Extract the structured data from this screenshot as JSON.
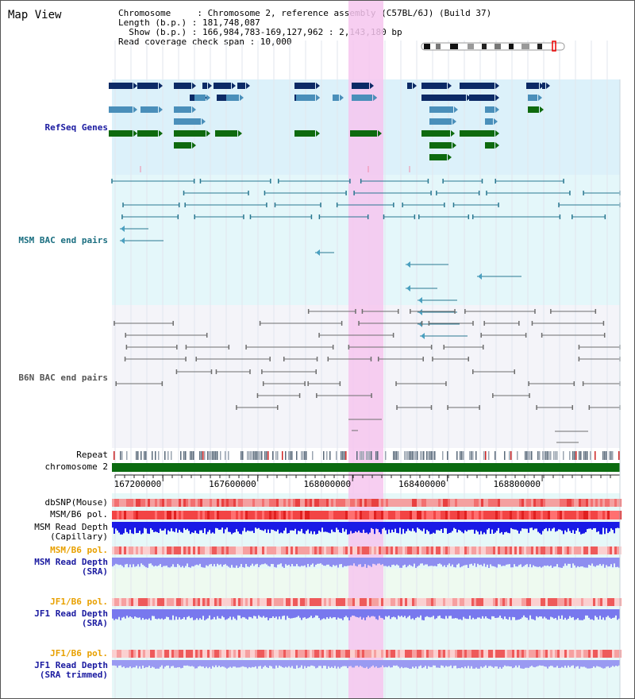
{
  "header": {
    "title": "Map View",
    "chromosome_line": "Chromosome     : Chromosome 2, reference assembly (C57BL/6J) (Build 37)",
    "length_line": "Length (b.p.) : 181,748,087",
    "show_line": "  Show (b.p.) : 166,984,783-169,127,962 : 2,143,180 bp",
    "coverage_line": "Read coverage check span : 10,000"
  },
  "tracks": {
    "refseq": "RefSeq Genes",
    "msm_bac": "MSM BAC end pairs",
    "b6n_bac": "B6N BAC end pairs",
    "repeat": "Repeat",
    "chromosome": "chromosome 2",
    "dbsnp": "dbSNP(Mouse)",
    "msm_pol_1": "MSM/B6 pol.",
    "msm_depth_cap_1": "MSM Read Depth",
    "msm_depth_cap_2": "(Capillary)",
    "msm_pol_2": "MSM/B6 pol.",
    "msm_depth_sra_1": "MSM Read Depth",
    "msm_depth_sra_2": "(SRA)",
    "jf1_pol_1": "JF1/B6 pol.",
    "jf1_depth_sra_1": "JF1 Read Depth",
    "jf1_depth_sra_2": "(SRA)",
    "jf1_pol_2": "JF1/B6 pol.",
    "jf1_depth_trim_1": "JF1 Read Depth",
    "jf1_depth_trim_2": "(SRA trimmed)"
  },
  "axis": {
    "ticks": [
      {
        "pos": 167200000,
        "label": "167200000"
      },
      {
        "pos": 167600000,
        "label": "167600000"
      },
      {
        "pos": 168000000,
        "label": "168000000"
      },
      {
        "pos": 168400000,
        "label": "168400000"
      },
      {
        "pos": 168800000,
        "label": "168800000"
      }
    ]
  },
  "colors": {
    "label_blue": "#1a1aa0",
    "label_teal": "#1a6e80",
    "label_gray": "#555555",
    "label_orange": "#e8a000",
    "highlight": "#f6c6ee",
    "refseq_bg": "#dcf1fa",
    "msm_bg": "#e4f7fa",
    "b6n_bg": "#f4f4f9",
    "gene_dark": "#0c2a66",
    "gene_mid": "#4a8fba",
    "gene_green": "#0e6a0e",
    "chrom_green": "#0b6b10"
  }
}
